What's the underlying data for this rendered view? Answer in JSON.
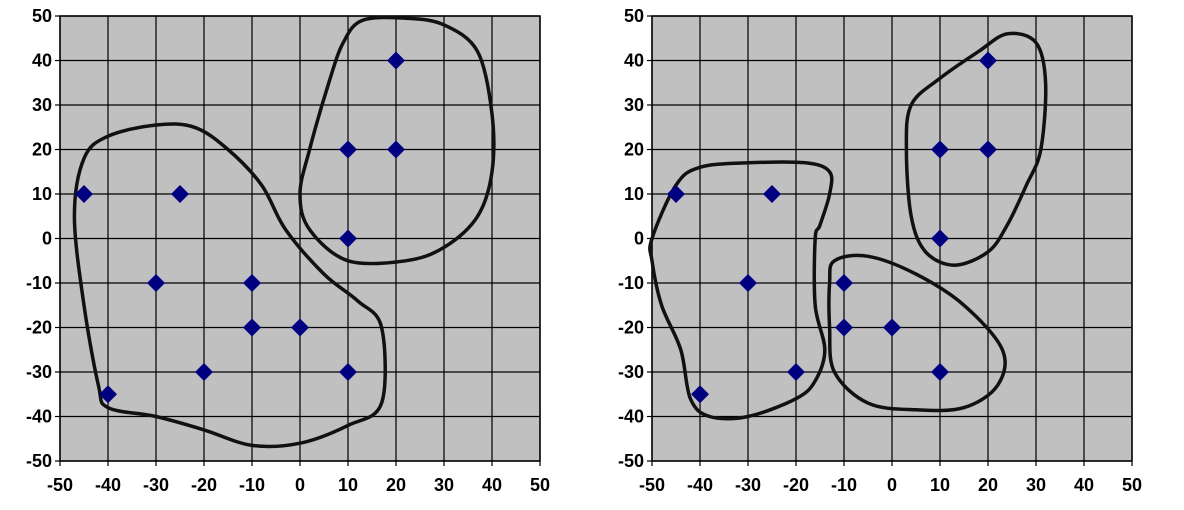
{
  "chart_data": [
    {
      "type": "scatter",
      "title": "",
      "xlabel": "",
      "ylabel": "",
      "xlim": [
        -50,
        50
      ],
      "ylim": [
        -50,
        50
      ],
      "grid": true,
      "legend": "none",
      "plot_background": "#c0c0c0",
      "marker_color": "#000080",
      "marker": "diamond",
      "x_ticks": [
        "-50",
        "-40",
        "-30",
        "-20",
        "-10",
        "0",
        "10",
        "20",
        "30",
        "40",
        "50"
      ],
      "y_ticks": [
        "50",
        "40",
        "30",
        "20",
        "10",
        "0",
        "-10",
        "-20",
        "-30",
        "-40",
        "-50"
      ],
      "points": [
        {
          "x": -45,
          "y": 10
        },
        {
          "x": -25,
          "y": 10
        },
        {
          "x": -30,
          "y": -10
        },
        {
          "x": -10,
          "y": -10
        },
        {
          "x": -10,
          "y": -20
        },
        {
          "x": 0,
          "y": -20
        },
        {
          "x": -20,
          "y": -30
        },
        {
          "x": -40,
          "y": -35
        },
        {
          "x": 10,
          "y": -30
        },
        {
          "x": 20,
          "y": 40
        },
        {
          "x": 10,
          "y": 20
        },
        {
          "x": 20,
          "y": 20
        },
        {
          "x": 10,
          "y": 0
        }
      ],
      "clusters": [
        {
          "members": [
            [
              -45,
              10
            ],
            [
              -25,
              10
            ],
            [
              -30,
              -10
            ],
            [
              -10,
              -10
            ],
            [
              -10,
              -20
            ],
            [
              0,
              -20
            ],
            [
              -20,
              -30
            ],
            [
              -40,
              -35
            ],
            [
              10,
              -30
            ]
          ],
          "outline": [
            [
              -45,
              18
            ],
            [
              -40,
              23
            ],
            [
              -30,
              25.5
            ],
            [
              -22,
              25
            ],
            [
              -15,
              20
            ],
            [
              -8,
              12
            ],
            [
              -3,
              2
            ],
            [
              5,
              -8
            ],
            [
              12,
              -14
            ],
            [
              17,
              -20
            ],
            [
              17,
              -37
            ],
            [
              10,
              -42
            ],
            [
              0,
              -46
            ],
            [
              -10,
              -46.5
            ],
            [
              -20,
              -43
            ],
            [
              -30,
              -40
            ],
            [
              -40,
              -38
            ],
            [
              -42,
              -33
            ],
            [
              -45,
              -15
            ],
            [
              -47,
              5
            ]
          ]
        },
        {
          "members": [
            [
              20,
              40
            ],
            [
              10,
              20
            ],
            [
              20,
              20
            ],
            [
              10,
              0
            ]
          ],
          "outline": [
            [
              9,
              44
            ],
            [
              13,
              49
            ],
            [
              22,
              49.5
            ],
            [
              30,
              48
            ],
            [
              37,
              42
            ],
            [
              40,
              28
            ],
            [
              40,
              15
            ],
            [
              37,
              5
            ],
            [
              30,
              -2
            ],
            [
              22,
              -5
            ],
            [
              10,
              -5
            ],
            [
              2,
              2
            ],
            [
              0,
              10
            ],
            [
              2,
              20
            ],
            [
              6,
              35
            ]
          ]
        }
      ]
    },
    {
      "type": "scatter",
      "title": "",
      "xlabel": "",
      "ylabel": "",
      "xlim": [
        -50,
        50
      ],
      "ylim": [
        -50,
        50
      ],
      "grid": true,
      "legend": "none",
      "plot_background": "#c0c0c0",
      "marker_color": "#000080",
      "marker": "diamond",
      "x_ticks": [
        "-50",
        "-40",
        "-30",
        "-20",
        "-10",
        "0",
        "10",
        "20",
        "30",
        "40",
        "50"
      ],
      "y_ticks": [
        "50",
        "40",
        "30",
        "20",
        "10",
        "0",
        "-10",
        "-20",
        "-30",
        "-40",
        "-50"
      ],
      "points": [
        {
          "x": -45,
          "y": 10
        },
        {
          "x": -25,
          "y": 10
        },
        {
          "x": -30,
          "y": -10
        },
        {
          "x": -20,
          "y": -30
        },
        {
          "x": -40,
          "y": -35
        },
        {
          "x": -10,
          "y": -10
        },
        {
          "x": -10,
          "y": -20
        },
        {
          "x": 0,
          "y": -20
        },
        {
          "x": 10,
          "y": -30
        },
        {
          "x": 20,
          "y": 40
        },
        {
          "x": 10,
          "y": 20
        },
        {
          "x": 20,
          "y": 20
        },
        {
          "x": 10,
          "y": 0
        }
      ],
      "clusters": [
        {
          "members": [
            [
              -45,
              10
            ],
            [
              -25,
              10
            ],
            [
              -30,
              -10
            ],
            [
              -20,
              -30
            ],
            [
              -40,
              -35
            ]
          ],
          "outline": [
            [
              -45,
              12
            ],
            [
              -40,
              16
            ],
            [
              -30,
              17
            ],
            [
              -18,
              17
            ],
            [
              -13,
              15
            ],
            [
              -13,
              10
            ],
            [
              -15,
              3
            ],
            [
              -16,
              0
            ],
            [
              -16,
              -15
            ],
            [
              -14,
              -25
            ],
            [
              -16,
              -32
            ],
            [
              -20,
              -36
            ],
            [
              -30,
              -40
            ],
            [
              -38,
              -40
            ],
            [
              -42,
              -36
            ],
            [
              -44,
              -25
            ],
            [
              -48,
              -15
            ],
            [
              -50,
              -5
            ],
            [
              -50,
              0
            ]
          ]
        },
        {
          "members": [
            [
              -10,
              -10
            ],
            [
              -10,
              -20
            ],
            [
              0,
              -20
            ],
            [
              10,
              -30
            ]
          ],
          "outline": [
            [
              -12,
              -5
            ],
            [
              -5,
              -4
            ],
            [
              5,
              -8
            ],
            [
              15,
              -15
            ],
            [
              23,
              -25
            ],
            [
              22,
              -33
            ],
            [
              15,
              -38
            ],
            [
              5,
              -38.5
            ],
            [
              -5,
              -37
            ],
            [
              -12,
              -30
            ],
            [
              -13,
              -20
            ],
            [
              -13,
              -10
            ]
          ]
        },
        {
          "members": [
            [
              20,
              40
            ],
            [
              10,
              20
            ],
            [
              20,
              20
            ],
            [
              10,
              0
            ]
          ],
          "outline": [
            [
              10,
              36
            ],
            [
              18,
              42
            ],
            [
              24,
              46
            ],
            [
              30,
              44
            ],
            [
              32,
              35
            ],
            [
              31,
              20
            ],
            [
              28,
              12
            ],
            [
              24,
              3
            ],
            [
              20,
              -3
            ],
            [
              13,
              -6
            ],
            [
              7,
              -3
            ],
            [
              4,
              5
            ],
            [
              3,
              20
            ],
            [
              4,
              30
            ]
          ]
        }
      ]
    }
  ]
}
